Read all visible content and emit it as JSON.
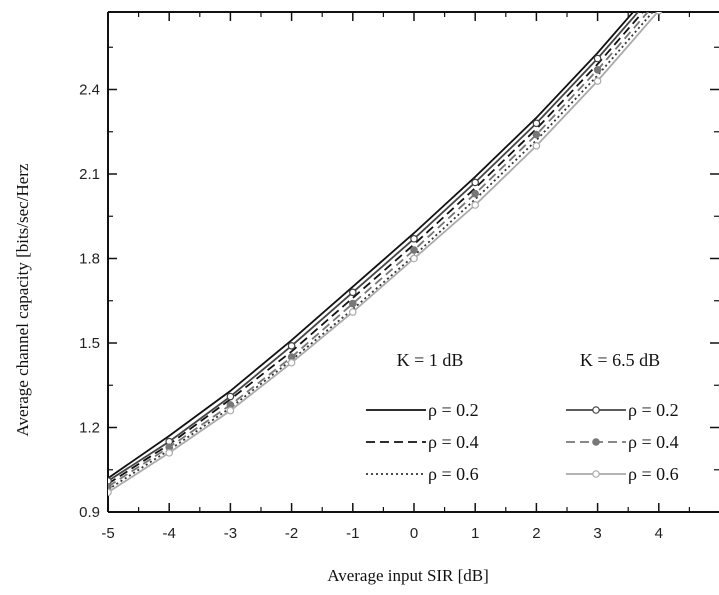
{
  "chart_data": {
    "type": "line",
    "xlabel": "Average input SIR [dB]",
    "ylabel": "Average channel capacity [bits/sec/Herz",
    "xlim": [
      -5,
      5
    ],
    "ylim": [
      0.9,
      2.75
    ],
    "xticks": [
      -5,
      -4,
      -3,
      -2,
      -1,
      0,
      1,
      2,
      3,
      4
    ],
    "xtick_labels": [
      "-5",
      "-4",
      "-3",
      "-2",
      "-1",
      "0",
      "1",
      "2",
      "3",
      "4"
    ],
    "yticks": [
      0.9,
      1.2,
      1.5,
      1.8,
      2.1,
      2.4
    ],
    "ytick_labels": [
      "0.9",
      "1.2",
      "1.5",
      "1.8",
      "2.1",
      "2.4"
    ],
    "grid": false,
    "legend_position": "bottom-right",
    "legend_groups": [
      "K  = 1 dB",
      "K  = 6.5 dB"
    ],
    "series": [
      {
        "name": "ρ = 0.2",
        "group": "K  = 1 dB",
        "style": "solid",
        "marker": "none",
        "color": "#111111",
        "x": [
          -5,
          -4,
          -3,
          -2,
          -1,
          0,
          1,
          2,
          3,
          4
        ],
        "y": [
          1.02,
          1.17,
          1.33,
          1.51,
          1.7,
          1.89,
          2.09,
          2.3,
          2.53,
          2.78
        ]
      },
      {
        "name": "ρ = 0.4",
        "group": "K  = 1 dB",
        "style": "dashed",
        "marker": "none",
        "color": "#111111",
        "x": [
          -5,
          -4,
          -3,
          -2,
          -1,
          0,
          1,
          2,
          3,
          4
        ],
        "y": [
          1.0,
          1.14,
          1.3,
          1.47,
          1.66,
          1.85,
          2.05,
          2.26,
          2.49,
          2.74
        ]
      },
      {
        "name": "ρ = 0.6",
        "group": "K  = 1 dB",
        "style": "dotted",
        "marker": "none",
        "color": "#333333",
        "x": [
          -5,
          -4,
          -3,
          -2,
          -1,
          0,
          1,
          2,
          3,
          4
        ],
        "y": [
          0.98,
          1.12,
          1.27,
          1.44,
          1.62,
          1.81,
          2.01,
          2.22,
          2.45,
          2.7
        ]
      },
      {
        "name": "ρ = 0.2",
        "group": "K  = 6.5 dB",
        "style": "solid",
        "marker": "open-circle",
        "color": "#444444",
        "x": [
          -5,
          -4,
          -3,
          -2,
          -1,
          0,
          1,
          2,
          3,
          4
        ],
        "y": [
          1.01,
          1.15,
          1.31,
          1.49,
          1.68,
          1.87,
          2.07,
          2.28,
          2.51,
          2.76
        ]
      },
      {
        "name": "ρ = 0.4",
        "group": "K  = 6.5 dB",
        "style": "dashed",
        "marker": "filled-circle",
        "color": "#777777",
        "x": [
          -5,
          -4,
          -3,
          -2,
          -1,
          0,
          1,
          2,
          3,
          4
        ],
        "y": [
          0.99,
          1.13,
          1.28,
          1.45,
          1.64,
          1.83,
          2.03,
          2.24,
          2.47,
          2.72
        ]
      },
      {
        "name": "ρ = 0.6",
        "group": "K  = 6.5 dB",
        "style": "solid",
        "marker": "open-circle",
        "color": "#aaaaaa",
        "x": [
          -5,
          -4,
          -3,
          -2,
          -1,
          0,
          1,
          2,
          3,
          4
        ],
        "y": [
          0.97,
          1.11,
          1.26,
          1.43,
          1.61,
          1.8,
          1.99,
          2.2,
          2.43,
          2.68
        ]
      }
    ]
  }
}
